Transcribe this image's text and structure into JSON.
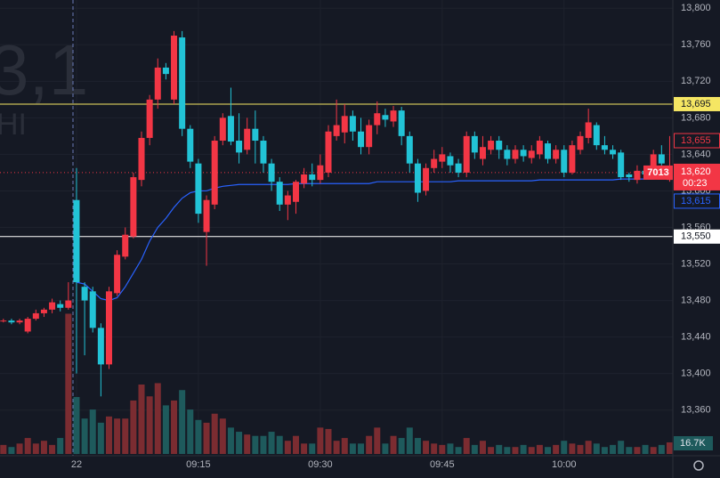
{
  "chart_data": {
    "type": "candlestick",
    "watermark": [
      "3,1",
      "HI"
    ],
    "categories": [
      null,
      null,
      null,
      null,
      null,
      null,
      null,
      null,
      null,
      "22",
      null,
      null,
      null,
      null,
      null,
      null,
      null,
      null,
      null,
      null,
      null,
      null,
      null,
      null,
      "09:15",
      null,
      null,
      null,
      null,
      null,
      null,
      null,
      null,
      null,
      null,
      null,
      null,
      null,
      null,
      "09:30",
      null,
      null,
      null,
      null,
      null,
      null,
      null,
      null,
      null,
      null,
      null,
      null,
      null,
      null,
      "09:45",
      null,
      null,
      null,
      null,
      null,
      null,
      null,
      null,
      null,
      null,
      null,
      null,
      null,
      null,
      "10:00",
      null,
      null,
      null,
      null,
      null,
      null,
      null,
      null,
      null,
      null,
      null,
      null,
      null
    ],
    "open": [
      13458,
      13458,
      13456,
      13446,
      13460,
      13466,
      13470,
      13476,
      13472,
      13590,
      13495,
      13490,
      13450,
      13410,
      13488,
      13528,
      13550,
      13612,
      13658,
      13700,
      13735,
      13700,
      13768,
      13668,
      13630,
      13555,
      13585,
      13655,
      13682,
      13655,
      13645,
      13668,
      13655,
      13630,
      13610,
      13585,
      13588,
      13608,
      13618,
      13612,
      13620,
      13660,
      13664,
      13682,
      13665,
      13648,
      13672,
      13683,
      13676,
      13688,
      13660,
      13630,
      13600,
      13625,
      13632,
      13638,
      13630,
      13620,
      13660,
      13635,
      13645,
      13655,
      13645,
      13635,
      13645,
      13636,
      13640,
      13652,
      13635,
      13645,
      13620,
      13645,
      13658,
      13672,
      13650,
      13645,
      13642,
      13618,
      13612,
      13622,
      13620,
      13640,
      13612
    ],
    "high": [
      13460,
      13460,
      13460,
      13462,
      13470,
      13472,
      13482,
      13480,
      13500,
      13625,
      13500,
      13495,
      13455,
      13495,
      13535,
      13560,
      13620,
      13665,
      13705,
      13745,
      13740,
      13775,
      13775,
      13672,
      13635,
      13595,
      13660,
      13685,
      13713,
      13685,
      13680,
      13688,
      13660,
      13635,
      13615,
      13600,
      13612,
      13625,
      13630,
      13640,
      13672,
      13700,
      13695,
      13688,
      13680,
      13678,
      13698,
      13690,
      13693,
      13692,
      13665,
      13635,
      13630,
      13645,
      13648,
      13642,
      13635,
      13665,
      13665,
      13660,
      13660,
      13660,
      13650,
      13650,
      13650,
      13650,
      13660,
      13655,
      13650,
      13650,
      13655,
      13665,
      13690,
      13675,
      13660,
      13650,
      13645,
      13620,
      13628,
      13625,
      13645,
      13650,
      13660
    ],
    "low": [
      13456,
      13454,
      13454,
      13444,
      13458,
      13462,
      13466,
      13468,
      13470,
      13400,
      13420,
      13445,
      13375,
      13405,
      13485,
      13525,
      13548,
      13605,
      13650,
      13690,
      13722,
      13695,
      13660,
      13625,
      13565,
      13518,
      13580,
      13650,
      13650,
      13630,
      13640,
      13630,
      13620,
      13600,
      13578,
      13568,
      13575,
      13603,
      13605,
      13608,
      13615,
      13655,
      13652,
      13655,
      13640,
      13640,
      13662,
      13670,
      13670,
      13650,
      13620,
      13588,
      13595,
      13620,
      13625,
      13620,
      13615,
      13615,
      13635,
      13628,
      13640,
      13635,
      13628,
      13630,
      13632,
      13630,
      13635,
      13630,
      13630,
      13615,
      13618,
      13640,
      13652,
      13645,
      13640,
      13635,
      13612,
      13610,
      13608,
      13615,
      13615,
      13625,
      13610
    ],
    "close": [
      13458,
      13456,
      13458,
      13460,
      13466,
      13470,
      13478,
      13472,
      13480,
      13500,
      13480,
      13450,
      13410,
      13490,
      13530,
      13552,
      13615,
      13658,
      13700,
      13735,
      13728,
      13770,
      13668,
      13632,
      13575,
      13590,
      13655,
      13680,
      13654,
      13642,
      13668,
      13655,
      13630,
      13610,
      13585,
      13595,
      13610,
      13618,
      13612,
      13628,
      13665,
      13672,
      13682,
      13665,
      13648,
      13672,
      13685,
      13678,
      13688,
      13660,
      13630,
      13598,
      13625,
      13635,
      13640,
      13628,
      13620,
      13660,
      13642,
      13648,
      13655,
      13645,
      13635,
      13645,
      13638,
      13644,
      13655,
      13635,
      13645,
      13620,
      13650,
      13660,
      13675,
      13650,
      13645,
      13640,
      13615,
      13615,
      13622,
      13618,
      13640,
      13630,
      13620
    ],
    "volume": {
      "values": [
        13,
        10,
        15,
        23,
        15,
        19,
        13,
        23,
        202,
        82,
        51,
        64,
        45,
        54,
        51,
        51,
        77,
        100,
        83,
        102,
        70,
        77,
        92,
        64,
        49,
        45,
        58,
        51,
        38,
        32,
        28,
        26,
        26,
        32,
        26,
        19,
        26,
        15,
        15,
        38,
        36,
        19,
        23,
        15,
        15,
        26,
        38,
        15,
        26,
        23,
        38,
        23,
        19,
        15,
        13,
        15,
        10,
        23,
        13,
        19,
        10,
        13,
        10,
        10,
        13,
        10,
        13,
        10,
        13,
        19,
        15,
        13,
        19,
        15,
        10,
        13,
        19,
        10,
        10,
        13,
        10,
        13,
        16.7
      ],
      "last_label": "16.7K"
    },
    "vwap": {
      "color": "#2962ff",
      "values": [
        null,
        null,
        null,
        null,
        null,
        null,
        null,
        null,
        null,
        13500,
        13498,
        13490,
        13482,
        13480,
        13483,
        13495,
        13510,
        13525,
        13545,
        13560,
        13570,
        13582,
        13592,
        13598,
        13600,
        13600,
        13603,
        13605,
        13606,
        13607,
        13607,
        13607,
        13607,
        13607,
        13607,
        13607,
        13608,
        13608,
        13608,
        13608,
        13608,
        13608,
        13608,
        13608,
        13608,
        13608,
        13610,
        13610,
        13610,
        13610,
        13610,
        13610,
        13610,
        13610,
        13610,
        13610,
        13611,
        13611,
        13611,
        13611,
        13611,
        13611,
        13611,
        13611,
        13611,
        13611,
        13612,
        13612,
        13612,
        13612,
        13612,
        13612,
        13612,
        13612,
        13612,
        13612,
        13613,
        13613,
        13613,
        13613,
        13613,
        13614,
        13615
      ]
    },
    "up_color": "#f23645",
    "down_color": "#22c3d6",
    "ylim": [
      13310,
      13809
    ],
    "yticks": [
      {
        "value": 13360,
        "label": "13,360"
      },
      {
        "value": 13400,
        "label": "13,400"
      },
      {
        "value": 13440,
        "label": "13,440"
      },
      {
        "value": 13480,
        "label": "13,480"
      },
      {
        "value": 13520,
        "label": "13,520"
      },
      {
        "value": 13560,
        "label": "13,560"
      },
      {
        "value": 13600,
        "label": "13,600"
      },
      {
        "value": 13640,
        "label": "13,640"
      },
      {
        "value": 13680,
        "label": "13,680"
      },
      {
        "value": 13720,
        "label": "13,720"
      },
      {
        "value": 13760,
        "label": "13,760"
      },
      {
        "value": 13800,
        "label": "13,800"
      }
    ],
    "grid": true,
    "levels": [
      {
        "value": 13695,
        "label": "13,695",
        "color": "#f5e663"
      },
      {
        "value": 13550,
        "label": "13,550",
        "color": "#ffffff"
      }
    ],
    "high_tag": {
      "value": 13655,
      "label": "13,655"
    },
    "vwap_tag": {
      "value": 13615,
      "label": "13,615"
    },
    "last_tag": {
      "value": 13620,
      "label": "13,620",
      "countdown": "00:23",
      "side_label": "7013"
    }
  }
}
